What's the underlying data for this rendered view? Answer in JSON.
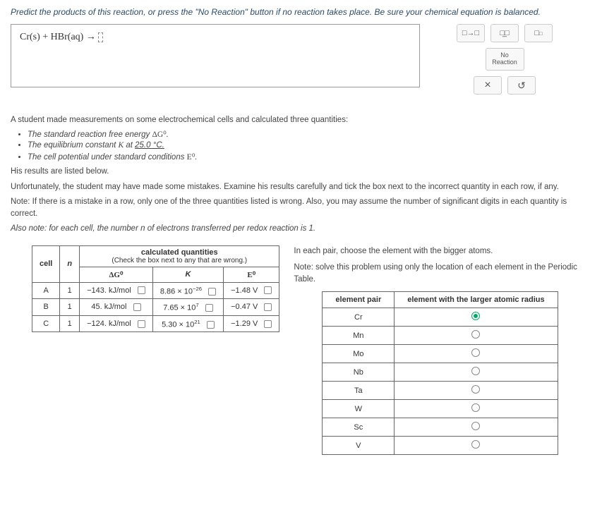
{
  "problem1": {
    "prompt": "Predict the products of this reaction, or press the \"No Reaction\" button if no reaction takes place. Be sure your chemical equation is balanced.",
    "reaction_left": "Cr(s) + HBr(aq) → ",
    "tools": {
      "btn1": "□→□",
      "btn2": "□̲□",
      "btn3_html": "□<sup>□</sup>",
      "no_reaction": "No\nReaction",
      "close": "×",
      "reset": "↺"
    }
  },
  "problem2": {
    "intro": "A student made measurements on some electrochemical cells and calculated three quantities:",
    "bullets": {
      "b1_pre": "The standard reaction free energy ",
      "b1_sym": "ΔG⁰",
      "b1_post": ".",
      "b2_pre": "The equilibrium constant ",
      "b2_k": "K",
      "b2_mid": " at ",
      "b2_temp": "25.0 °C.",
      "b3_pre": "The cell potential under standard conditions ",
      "b3_sym": "E⁰",
      "b3_post": "."
    },
    "line_results": "His results are listed below.",
    "line_unfort": "Unfortunately, the student may have made some mistakes. Examine his results carefully and tick the box next to the incorrect quantity in each row, if any.",
    "line_note": "Note: If there is a mistake in a row, only one of the three quantities listed is wrong. Also, you may assume the number of significant digits in each quantity is correct.",
    "line_also": "Also note: for each cell, the number n of electrons transferred per redox reaction is 1."
  },
  "calc_table": {
    "header_main": "calculated quantities",
    "header_sub": "(Check the box next to any that are wrong.)",
    "cols": {
      "cell": "cell",
      "n": "n",
      "dg": "ΔG⁰",
      "k": "K",
      "e": "E⁰"
    },
    "rows": [
      {
        "cell": "A",
        "n": "1",
        "dg": "−143. kJ/mol",
        "k_base": "8.86 × 10",
        "k_exp": "−26",
        "e": "−1.48 V"
      },
      {
        "cell": "B",
        "n": "1",
        "dg": "45. kJ/mol",
        "k_base": "7.65 × 10",
        "k_exp": "7",
        "e": "−0.47 V"
      },
      {
        "cell": "C",
        "n": "1",
        "dg": "−124. kJ/mol",
        "k_base": "5.30 × 10",
        "k_exp": "21",
        "e": "−1.29 V"
      }
    ]
  },
  "problem3": {
    "line1": "In each pair, choose the element with the bigger atoms.",
    "line2": "Note: solve this problem using only the location of each element in the Periodic Table.",
    "headers": {
      "pair": "element pair",
      "larger": "element with the larger atomic radius"
    },
    "elements": [
      "Cr",
      "Mn",
      "Mo",
      "Nb",
      "Ta",
      "W",
      "Sc",
      "V"
    ],
    "selected_index": 0
  }
}
